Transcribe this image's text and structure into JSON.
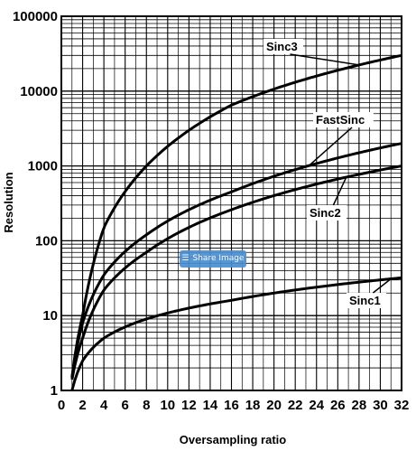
{
  "share_button": {
    "label": "Share Image",
    "icon": "layers-icon"
  },
  "chart_data": {
    "type": "line",
    "title": "",
    "xlabel": "Oversampling ratio",
    "ylabel": "Resolution",
    "xlim": [
      0,
      32
    ],
    "ylim": [
      1,
      100000
    ],
    "y_scale": "log",
    "grid": true,
    "x_ticks": [
      0,
      2,
      4,
      6,
      8,
      10,
      12,
      14,
      16,
      18,
      20,
      22,
      24,
      26,
      28,
      30,
      32
    ],
    "y_ticks": [
      1,
      10,
      100,
      1000,
      10000,
      100000
    ],
    "series": [
      {
        "name": "Sinc3",
        "x": [
          1,
          2,
          4,
          8,
          16,
          32
        ],
        "y": [
          1.5,
          10,
          150,
          1000,
          6500,
          30000
        ]
      },
      {
        "name": "FastSinc",
        "x": [
          1,
          2,
          4,
          8,
          16,
          32
        ],
        "y": [
          1.5,
          8,
          35,
          120,
          450,
          2000
        ]
      },
      {
        "name": "Sinc2",
        "x": [
          1,
          2,
          4,
          8,
          16,
          32
        ],
        "y": [
          1.4,
          5,
          22,
          70,
          260,
          1000
        ]
      },
      {
        "name": "Sinc1",
        "x": [
          1,
          2,
          4,
          8,
          16,
          32
        ],
        "y": [
          1,
          2.5,
          5,
          9,
          16,
          32
        ]
      }
    ],
    "annotations": [
      {
        "series": "Sinc3",
        "text": "Sinc3"
      },
      {
        "series": "FastSinc",
        "text": "FastSinc"
      },
      {
        "series": "Sinc2",
        "text": "Sinc2"
      },
      {
        "series": "Sinc1",
        "text": "Sinc1"
      }
    ]
  }
}
